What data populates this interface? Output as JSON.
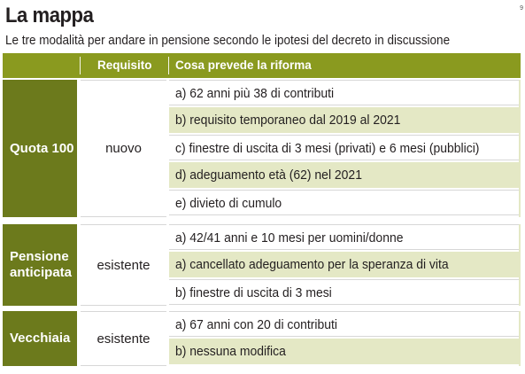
{
  "title": "La mappa",
  "subtitle": "Le tre modalità per andare in pensione secondo le ipotesi del decreto in discussione",
  "corner_mark": "9",
  "header": {
    "col1": "",
    "col2": "Requisito",
    "col3": "Cosa prevede la riforma"
  },
  "groups": [
    {
      "name": "Quota 100",
      "requisito": "nuovo",
      "items": [
        "a) 62 anni più 38 di contributi",
        "b) requisito temporaneo dal 2019 al 2021",
        "c) finestre di uscita di 3 mesi (privati) e 6 mesi (pubblici)",
        "d) adeguamento età (62) nel 2021",
        "e) divieto di cumulo"
      ]
    },
    {
      "name": "Pensione anticipata",
      "requisito": "esistente",
      "items": [
        "a) 42/41 anni e 10 mesi per uomini/donne",
        "a) cancellato adeguamento per la speranza di vita",
        "b) finestre di uscita di 3 mesi"
      ]
    },
    {
      "name": "Vecchiaia",
      "requisito": "esistente",
      "items": [
        "a) 67 anni con 20 di contributi",
        "b) nessuna modifica"
      ]
    }
  ],
  "colors": {
    "header_bg": "#8a9a1f",
    "group_bg": "#6c7a1c",
    "stripe_bg": "#e4e8c5"
  }
}
